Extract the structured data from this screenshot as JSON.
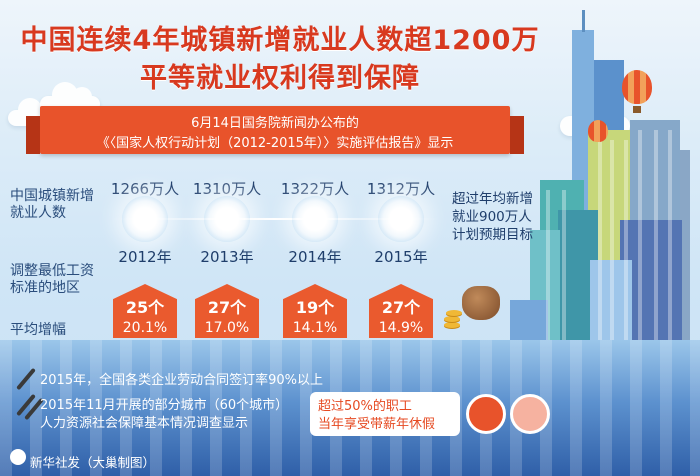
{
  "title": {
    "line1": "中国连续4年城镇新增就业人数超1200万",
    "line2": "平等就业权利得到保障"
  },
  "banner": {
    "line1": "6月14日国务院新闻办公布的",
    "line2": "《〈国家人权行动计划（2012-2015年）〉实施评估报告》显示"
  },
  "labels": {
    "employment": "中国城镇新增就业人数",
    "min_wage": "调整最低工资标准的地区",
    "avg_increase": "平均增幅"
  },
  "years": [
    {
      "year": "2012年",
      "employment": "1266万人",
      "regions": "25个",
      "increase": "20.1%"
    },
    {
      "year": "2013年",
      "employment": "1310万人",
      "regions": "27个",
      "increase": "17.0%"
    },
    {
      "year": "2014年",
      "employment": "1322万人",
      "regions": "19个",
      "increase": "14.1%"
    },
    {
      "year": "2015年",
      "employment": "1312万人",
      "regions": "27个",
      "increase": "14.9%"
    }
  ],
  "goal": "超过年均新增就业900万人计划预期目标",
  "notes": {
    "note1": "2015年，全国各类企业劳动合同签订率90%以上",
    "note2_line1": "2015年11月开展的部分城市（60个城市）",
    "note2_line2": "人力资源社会保障基本情况调查显示"
  },
  "sticker": {
    "line1": "超过50%的职工",
    "line2": "当年享受带薪年休假"
  },
  "credit": "新华社发（大巢制图）",
  "colors": {
    "title_red": "#d8391f",
    "accent_orange": "#e8532b",
    "text_navy": "#1f3e6b"
  }
}
